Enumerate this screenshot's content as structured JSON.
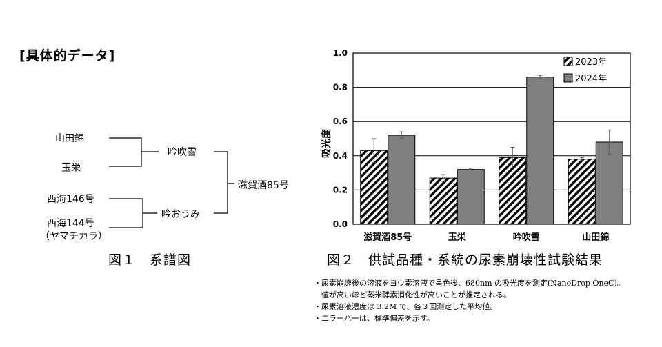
{
  "heading": "[具体的データ]",
  "pedigree": {
    "parents_a": [
      "山田錦",
      "玉栄"
    ],
    "parents_b": [
      "西海146号",
      "西海144号"
    ],
    "parents_b_note": "（ヤマチカラ）",
    "mid": [
      "吟吹雪",
      "吟おうみ"
    ],
    "child": "滋賀酒85号",
    "caption": "図１　系譜図"
  },
  "chart_data": {
    "type": "bar",
    "categories": [
      "滋賀酒85号",
      "玉栄",
      "吟吹雪",
      "山田錦"
    ],
    "series": [
      {
        "name": "2023年",
        "values": [
          0.43,
          0.27,
          0.39,
          0.38
        ],
        "error": [
          0.07,
          0.02,
          0.06,
          0.01
        ],
        "pattern": "hatch"
      },
      {
        "name": "2024年",
        "values": [
          0.52,
          0.32,
          0.86,
          0.48
        ],
        "error": [
          0.02,
          0.003,
          0.01,
          0.07
        ],
        "color": "#808080"
      }
    ],
    "ylabel": "吸光度",
    "ylim": [
      0,
      1.0
    ],
    "yticks": [
      "0.0",
      "0.2",
      "0.4",
      "0.6",
      "0.8",
      "1.0"
    ],
    "legend": "top-right",
    "caption": "図２　供試品種・系統の尿素崩壊性試験結果"
  },
  "notes": [
    "・尿素崩壊後の溶液をヨウ素溶液で呈色後、680nm の吸光度を測定(NanoDrop OneC)。",
    "　値が高いほど蒸米酵素消化性が高いことが推定される。",
    "・尿素溶液濃度は 3.2M で、各３回測定した平均値。",
    "・エラーバーは、標準偏差を示す。"
  ]
}
